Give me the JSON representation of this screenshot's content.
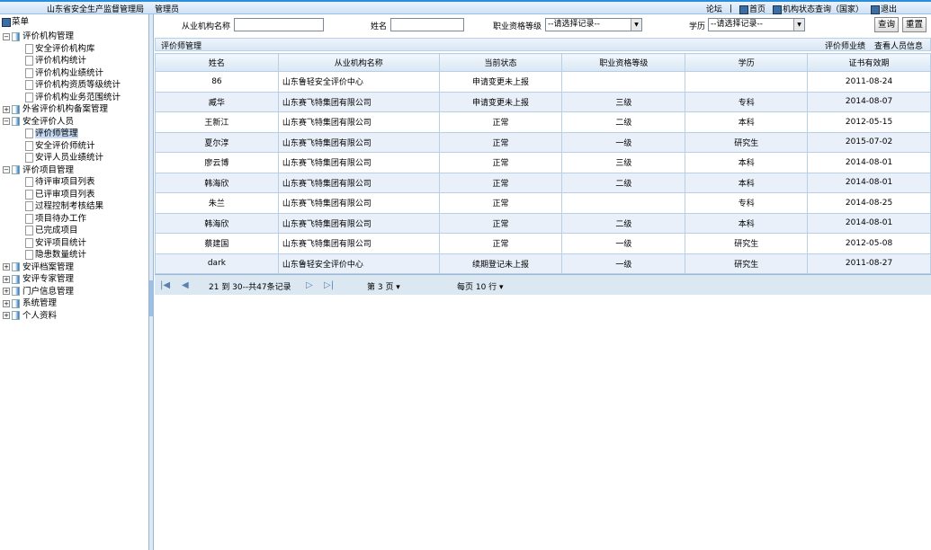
{
  "header": {
    "org": "山东省安全生产监督管理局",
    "user": "管理员",
    "forum": "论坛",
    "sep": "|",
    "home": "首页",
    "status_query": "机构状态查询（国家）",
    "logout": "退出"
  },
  "sidebar": {
    "root": "菜单",
    "items": [
      {
        "label": "评价机构管理",
        "level": 0,
        "type": "folder-open"
      },
      {
        "label": "安全评价机构库",
        "level": 1
      },
      {
        "label": "评价机构统计",
        "level": 1
      },
      {
        "label": "评价机构业绩统计",
        "level": 1
      },
      {
        "label": "评价机构资质等级统计",
        "level": 1
      },
      {
        "label": "评价机构业务范围统计",
        "level": 1
      },
      {
        "label": "外省评价机构备案管理",
        "level": 0,
        "type": "folder-closed"
      },
      {
        "label": "安全评价人员",
        "level": 0,
        "type": "folder-open"
      },
      {
        "label": "评价师管理",
        "level": 1,
        "selected": true
      },
      {
        "label": "安全评价师统计",
        "level": 1
      },
      {
        "label": "安评人员业绩统计",
        "level": 1
      },
      {
        "label": "评价项目管理",
        "level": 0,
        "type": "folder-open"
      },
      {
        "label": "待评审项目列表",
        "level": 1
      },
      {
        "label": "已评审项目列表",
        "level": 1
      },
      {
        "label": "过程控制考核结果",
        "level": 1
      },
      {
        "label": "项目待办工作",
        "level": 1
      },
      {
        "label": "已完成项目",
        "level": 1
      },
      {
        "label": "安评项目统计",
        "level": 1
      },
      {
        "label": "隐患数量统计",
        "level": 1
      },
      {
        "label": "安评档案管理",
        "level": 0,
        "type": "folder-closed"
      },
      {
        "label": "安评专家管理",
        "level": 0,
        "type": "folder-closed"
      },
      {
        "label": "门户信息管理",
        "level": 0,
        "type": "folder-closed"
      },
      {
        "label": "系统管理",
        "level": 0,
        "type": "folder-closed"
      },
      {
        "label": "个人资料",
        "level": 0,
        "type": "folder-closed"
      }
    ]
  },
  "search": {
    "org_label": "从业机构名称",
    "org_value": "",
    "name_label": "姓名",
    "name_value": "",
    "level_label": "职业资格等级",
    "level_value": "--请选择记录--",
    "edu_label": "学历",
    "edu_value": "--请选择记录--",
    "query": "查询",
    "reset": "重置"
  },
  "panel": {
    "title": "评价师管理",
    "perf": "评价师业绩",
    "view": "查看人员信息"
  },
  "table": {
    "columns": [
      "姓名",
      "从业机构名称",
      "当前状态",
      "职业资格等级",
      "学历",
      "证书有效期"
    ],
    "rows": [
      [
        "86",
        "山东鲁轻安全评价中心",
        "申请变更未上报",
        "",
        "",
        "2011-08-24"
      ],
      [
        "臧华",
        "山东赛飞特集团有限公司",
        "申请变更未上报",
        "三级",
        "专科",
        "2014-08-07"
      ],
      [
        "王新江",
        "山东赛飞特集团有限公司",
        "正常",
        "二级",
        "本科",
        "2012-05-15"
      ],
      [
        "夏尔淳",
        "山东赛飞特集团有限公司",
        "正常",
        "一级",
        "研究生",
        "2015-07-02"
      ],
      [
        "廖云博",
        "山东赛飞特集团有限公司",
        "正常",
        "三级",
        "本科",
        "2014-08-01"
      ],
      [
        "韩海欣",
        "山东赛飞特集团有限公司",
        "正常",
        "二级",
        "本科",
        "2014-08-01"
      ],
      [
        "朱兰",
        "山东赛飞特集团有限公司",
        "正常",
        "",
        "专科",
        "2014-08-25"
      ],
      [
        "韩海欣",
        "山东赛飞特集团有限公司",
        "正常",
        "二级",
        "本科",
        "2014-08-01"
      ],
      [
        "蔡建国",
        "山东赛飞特集团有限公司",
        "正常",
        "一级",
        "研究生",
        "2012-05-08"
      ],
      [
        "dark",
        "山东鲁轻安全评价中心",
        "续期登记未上报",
        "一级",
        "研究生",
        "2011-08-27"
      ]
    ]
  },
  "pager": {
    "range": "21 到 30--共47条记录",
    "page": "第 3 页 ▾",
    "per_page": "每页 10 行 ▾"
  }
}
